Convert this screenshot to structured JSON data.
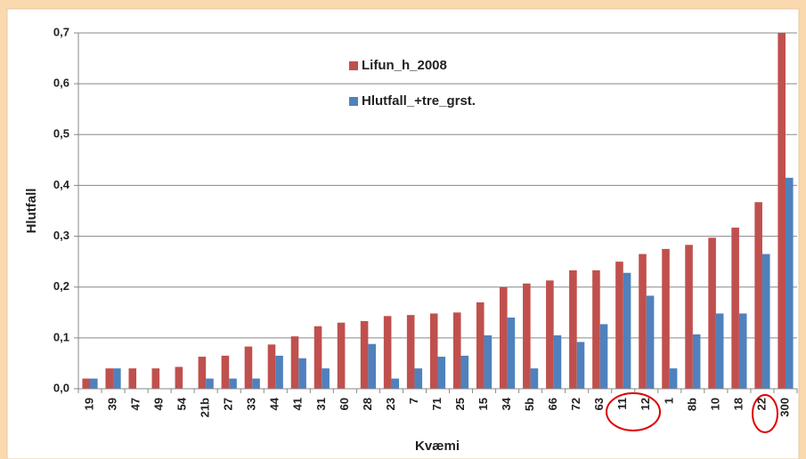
{
  "chart_data": {
    "type": "bar",
    "x_label": "Kvæmi",
    "y_label": "Hlutfall",
    "categories": [
      "19",
      "39",
      "47",
      "49",
      "54",
      "21b",
      "27",
      "33",
      "44",
      "41",
      "31",
      "60",
      "28",
      "23",
      "7",
      "71",
      "25",
      "15",
      "34",
      "5b",
      "66",
      "72",
      "63",
      "11",
      "12",
      "1",
      "8b",
      "10",
      "18",
      "22",
      "300"
    ],
    "series": [
      {
        "name": "Lifun_h_2008",
        "color": "#c0504d",
        "values": [
          0.02,
          0.04,
          0.04,
          0.04,
          0.043,
          0.063,
          0.065,
          0.083,
          0.087,
          0.103,
          0.123,
          0.13,
          0.133,
          0.143,
          0.145,
          0.148,
          0.15,
          0.17,
          0.2,
          0.207,
          0.213,
          0.233,
          0.233,
          0.25,
          0.265,
          0.275,
          0.283,
          0.297,
          0.317,
          0.367,
          0.7
        ]
      },
      {
        "name": "Hlutfall_+tre_grst.",
        "color": "#4f81bd",
        "values": [
          0.02,
          0.04,
          0,
          0,
          0,
          0.02,
          0.02,
          0.02,
          0.065,
          0.06,
          0.04,
          0,
          0.088,
          0.02,
          0.04,
          0.063,
          0.065,
          0.105,
          0.14,
          0.04,
          0.105,
          0.092,
          0.127,
          0.228,
          0.183,
          0.04,
          0.107,
          0.148,
          0.148,
          0.265,
          0.415
        ]
      }
    ],
    "ylim": [
      0,
      0.7
    ],
    "yticks": [
      {
        "value": 0,
        "label": "0,0"
      },
      {
        "value": 0.1,
        "label": "0,1"
      },
      {
        "value": 0.2,
        "label": "0,2"
      },
      {
        "value": 0.3,
        "label": "0,3"
      },
      {
        "value": 0.4,
        "label": "0,4"
      },
      {
        "value": 0.5,
        "label": "0,5"
      },
      {
        "value": 0.6,
        "label": "0,6"
      },
      {
        "value": 0.7,
        "label": "0,7"
      }
    ],
    "grid": true
  }
}
